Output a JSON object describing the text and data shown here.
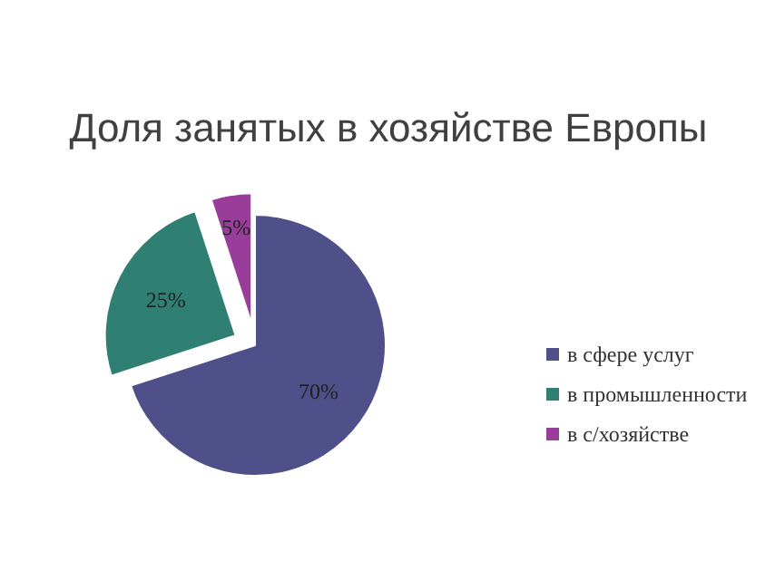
{
  "chart_data": {
    "type": "pie",
    "title": "Доля занятых в хозяйстве Европы",
    "categories": [
      "в сфере услуг",
      "в промышленности",
      "в с/хозяйстве"
    ],
    "values": [
      70,
      25,
      5
    ],
    "colors": [
      "#4f4f8a",
      "#2f7f73",
      "#9a3d9a"
    ],
    "value_labels": [
      "70%",
      "25%",
      "5%"
    ],
    "legend": "right"
  }
}
